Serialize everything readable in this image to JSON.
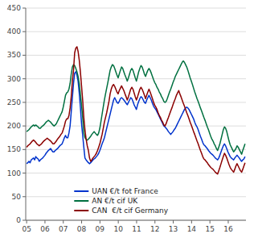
{
  "chart_data": {
    "type": "line",
    "x": [
      2005,
      2005.0624,
      2005.1248,
      2005.1872,
      2005.2496,
      2005.312,
      2005.3743,
      2005.4367,
      2005.4991,
      2005.5615,
      2005.6239,
      2005.6863,
      2005.7487,
      2005.8111,
      2005.8735,
      2005.9359,
      2005.9983,
      2006.0606,
      2006.123,
      2006.1854,
      2006.2478,
      2006.3102,
      2006.3726,
      2006.435,
      2006.4974,
      2006.5598,
      2006.6222,
      2006.6846,
      2006.7469,
      2006.8093,
      2006.8717,
      2006.9341,
      2006.9965,
      2007.0589,
      2007.1213,
      2007.1837,
      2007.2461,
      2007.3085,
      2007.3709,
      2007.4332,
      2007.4956,
      2007.558,
      2007.6204,
      2007.6828,
      2007.7452,
      2007.8076,
      2007.87,
      2007.9324,
      2007.9948,
      2008.0572,
      2008.1195,
      2008.1819,
      2008.2443,
      2008.3067,
      2008.3691,
      2008.4315,
      2008.4939,
      2008.5563,
      2008.6187,
      2008.6811,
      2008.7435,
      2008.8058,
      2008.8682,
      2008.9306,
      2008.993,
      2009.0554,
      2009.1178,
      2009.1802,
      2009.2426,
      2009.305,
      2009.3674,
      2009.4298,
      2009.4921,
      2009.5545,
      2009.6169,
      2009.6793,
      2009.7417,
      2009.8041,
      2009.8665,
      2009.9289,
      2009.9913,
      2010.0537,
      2010.1161,
      2010.1784,
      2010.2408,
      2010.3032,
      2010.3656,
      2010.428,
      2010.4904,
      2010.5528,
      2010.6152,
      2010.6776,
      2010.74,
      2010.8024,
      2010.8647,
      2010.9271,
      2010.9895,
      2011.0519,
      2011.1143,
      2011.1767,
      2011.2391,
      2011.3015,
      2011.3639,
      2011.4263,
      2011.4887,
      2011.551,
      2011.6134,
      2011.6758,
      2011.7382,
      2011.8006,
      2011.863,
      2011.9254,
      2011.9878,
      2012.0502,
      2012.1126,
      2012.175,
      2012.2373,
      2012.2997,
      2012.3621,
      2012.4245,
      2012.4869,
      2012.5493,
      2012.6117,
      2012.6741,
      2012.7365,
      2012.7989,
      2012.8613,
      2012.9236,
      2012.986,
      2013.0484,
      2013.1108,
      2013.1732,
      2013.2356,
      2013.298,
      2013.3604,
      2013.4228,
      2013.4852,
      2013.5476,
      2013.6099,
      2013.6723,
      2013.7347,
      2013.7971,
      2013.8595,
      2013.9219,
      2013.9843,
      2014.0467,
      2014.1091,
      2014.1715,
      2014.2339,
      2014.2962,
      2014.3586,
      2014.421,
      2014.4834,
      2014.5458,
      2014.6082,
      2014.6706,
      2014.733,
      2014.7954,
      2014.8578,
      2014.9202,
      2014.9825,
      2015.0449,
      2015.1073,
      2015.1697,
      2015.2321,
      2015.2945,
      2015.3569,
      2015.4193,
      2015.4817,
      2015.5441,
      2015.6065,
      2015.6688,
      2015.7312,
      2015.7936,
      2015.856,
      2015.9184,
      2015.9808,
      2016.0432,
      2016.1056,
      2016.168,
      2016.2304,
      2016.2928,
      2016.3551,
      2016.4175,
      2016.4799,
      2016.5423,
      2016.6047,
      2016.6671,
      2016.7295,
      2016.7919,
      2016.8543,
      2016.9167
    ],
    "series": [
      {
        "name": "UAN €/t fot France",
        "color": "#0033CC",
        "values": [
          120,
          122,
          125,
          122,
          128,
          130,
          132,
          128,
          135,
          132,
          130,
          125,
          128,
          130,
          132,
          135,
          138,
          142,
          145,
          148,
          150,
          152,
          148,
          145,
          145,
          148,
          150,
          152,
          155,
          158,
          160,
          162,
          168,
          175,
          180,
          175,
          175,
          185,
          200,
          230,
          260,
          290,
          312,
          315,
          308,
          295,
          270,
          240,
          205,
          180,
          155,
          132,
          128,
          125,
          122,
          120,
          122,
          125,
          128,
          130,
          132,
          135,
          138,
          142,
          148,
          155,
          162,
          168,
          175,
          185,
          195,
          205,
          215,
          225,
          235,
          245,
          255,
          260,
          255,
          250,
          248,
          252,
          258,
          260,
          258,
          255,
          252,
          248,
          245,
          250,
          255,
          260,
          258,
          252,
          245,
          240,
          235,
          245,
          252,
          258,
          262,
          260,
          255,
          250,
          248,
          255,
          260,
          265,
          260,
          255,
          248,
          242,
          238,
          235,
          230,
          225,
          220,
          215,
          210,
          205,
          200,
          198,
          195,
          192,
          188,
          185,
          182,
          185,
          188,
          192,
          195,
          200,
          205,
          210,
          215,
          220,
          225,
          230,
          235,
          238,
          240,
          238,
          235,
          230,
          225,
          220,
          215,
          208,
          202,
          198,
          192,
          185,
          178,
          172,
          165,
          160,
          158,
          155,
          152,
          148,
          145,
          142,
          140,
          138,
          135,
          132,
          130,
          128,
          132,
          138,
          145,
          152,
          158,
          162,
          158,
          152,
          145,
          140,
          135,
          132,
          130,
          128,
          132,
          135,
          138,
          135,
          132,
          128,
          125,
          128,
          130,
          135
        ]
      },
      {
        "name": "AN €/t cif UK",
        "color": "#007040",
        "values": [
          188,
          190,
          192,
          195,
          198,
          200,
          202,
          200,
          202,
          200,
          198,
          195,
          195,
          198,
          200,
          202,
          205,
          208,
          210,
          212,
          210,
          208,
          205,
          202,
          200,
          202,
          205,
          210,
          215,
          220,
          225,
          230,
          240,
          252,
          265,
          270,
          272,
          278,
          290,
          310,
          325,
          330,
          328,
          322,
          315,
          305,
          290,
          268,
          245,
          218,
          185,
          175,
          172,
          170,
          172,
          175,
          178,
          182,
          185,
          188,
          185,
          182,
          180,
          185,
          195,
          210,
          225,
          240,
          255,
          268,
          280,
          292,
          305,
          318,
          325,
          330,
          328,
          322,
          315,
          308,
          302,
          310,
          318,
          325,
          322,
          315,
          308,
          302,
          295,
          302,
          310,
          318,
          322,
          318,
          310,
          302,
          295,
          305,
          315,
          322,
          328,
          325,
          318,
          310,
          305,
          312,
          318,
          322,
          318,
          312,
          305,
          298,
          292,
          288,
          282,
          278,
          272,
          268,
          262,
          258,
          252,
          250,
          252,
          258,
          265,
          272,
          278,
          285,
          292,
          298,
          305,
          310,
          315,
          320,
          325,
          330,
          335,
          338,
          335,
          330,
          325,
          318,
          310,
          302,
          295,
          288,
          280,
          272,
          265,
          258,
          252,
          245,
          238,
          232,
          225,
          218,
          212,
          205,
          198,
          192,
          185,
          178,
          172,
          168,
          162,
          158,
          152,
          148,
          155,
          162,
          172,
          182,
          192,
          198,
          195,
          188,
          178,
          168,
          160,
          155,
          150,
          145,
          148,
          152,
          158,
          155,
          150,
          145,
          140,
          148,
          155,
          162
        ]
      },
      {
        "name": "CAN  €/t cif Germany",
        "color": "#8B0000",
        "values": [
          155,
          158,
          160,
          162,
          165,
          168,
          170,
          168,
          165,
          162,
          160,
          158,
          160,
          162,
          165,
          168,
          170,
          172,
          174,
          172,
          170,
          168,
          165,
          162,
          162,
          165,
          168,
          172,
          175,
          178,
          182,
          185,
          192,
          200,
          210,
          215,
          215,
          222,
          238,
          262,
          295,
          318,
          355,
          365,
          368,
          358,
          340,
          315,
          285,
          255,
          218,
          192,
          172,
          158,
          148,
          132,
          125,
          128,
          132,
          135,
          138,
          142,
          148,
          155,
          162,
          172,
          182,
          195,
          208,
          218,
          228,
          240,
          252,
          268,
          278,
          285,
          288,
          284,
          278,
          272,
          268,
          275,
          280,
          285,
          280,
          275,
          268,
          262,
          255,
          262,
          270,
          278,
          282,
          278,
          270,
          262,
          255,
          262,
          270,
          278,
          282,
          278,
          272,
          265,
          258,
          265,
          272,
          278,
          272,
          265,
          258,
          250,
          244,
          240,
          235,
          228,
          222,
          218,
          212,
          208,
          202,
          200,
          205,
          212,
          218,
          225,
          232,
          238,
          245,
          252,
          258,
          265,
          270,
          275,
          268,
          262,
          255,
          248,
          242,
          235,
          228,
          222,
          215,
          208,
          202,
          195,
          188,
          182,
          175,
          168,
          162,
          155,
          148,
          142,
          135,
          130,
          128,
          125,
          122,
          118,
          115,
          112,
          110,
          108,
          105,
          102,
          100,
          98,
          105,
          112,
          120,
          128,
          135,
          142,
          138,
          132,
          125,
          118,
          112,
          108,
          105,
          102,
          108,
          115,
          120,
          115,
          110,
          105,
          102,
          108,
          115,
          122
        ]
      }
    ],
    "xlim": [
      2004.95,
      2016.9667
    ],
    "xticks": [
      {
        "value": 2005,
        "label": "05"
      },
      {
        "value": 2006,
        "label": "06"
      },
      {
        "value": 2007,
        "label": "07"
      },
      {
        "value": 2008,
        "label": "08"
      },
      {
        "value": 2009,
        "label": "09"
      },
      {
        "value": 2010,
        "label": "10"
      },
      {
        "value": 2011,
        "label": "11"
      },
      {
        "value": 2012,
        "label": "12"
      },
      {
        "value": 2013,
        "label": "13"
      },
      {
        "value": 2014,
        "label": "14"
      },
      {
        "value": 2015,
        "label": "15"
      },
      {
        "value": 2016,
        "label": "16"
      }
    ],
    "ylim": [
      0,
      450
    ],
    "yticks": [
      0,
      50,
      100,
      150,
      200,
      250,
      300,
      350,
      400,
      450
    ],
    "grid": true,
    "legend": "lower left"
  }
}
